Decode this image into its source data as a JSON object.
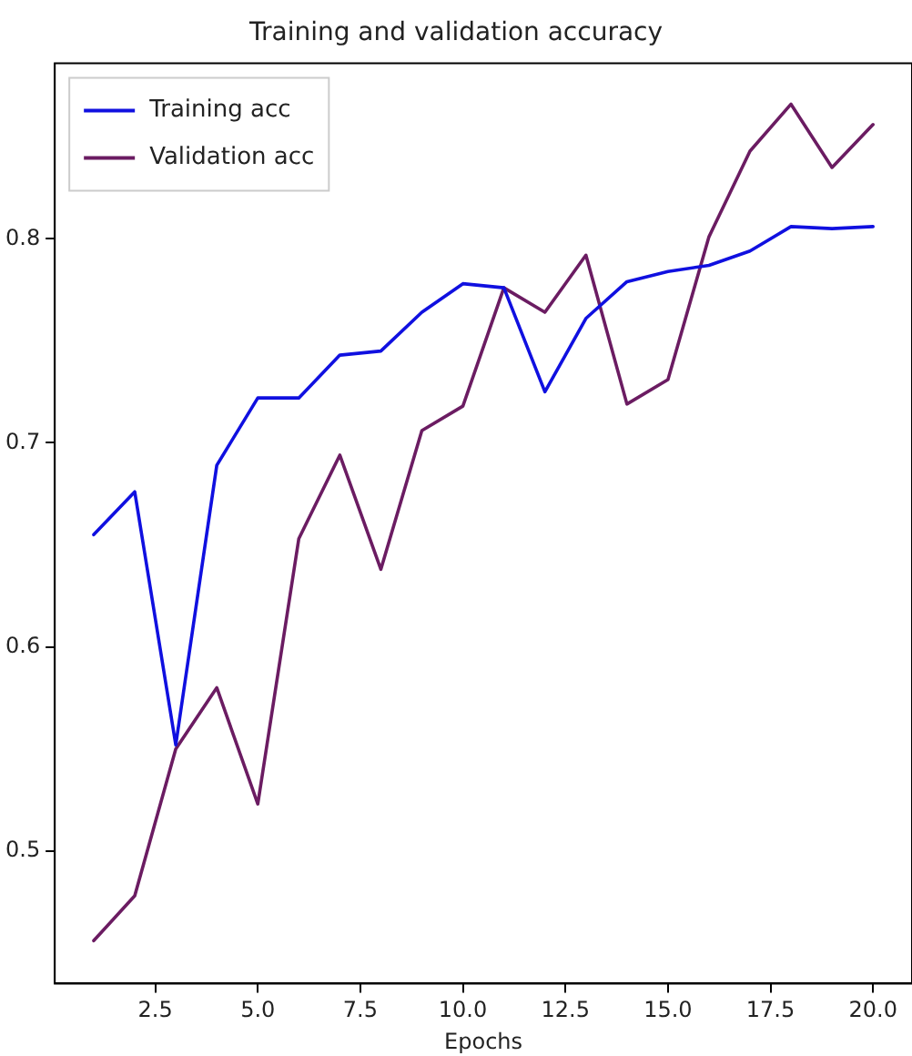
{
  "chart_data": {
    "type": "line",
    "title": "Training and validation accuracy",
    "xlabel": "Epochs",
    "x": [
      1,
      2,
      3,
      4,
      5,
      6,
      7,
      8,
      9,
      10,
      11,
      12,
      13,
      14,
      15,
      16,
      17,
      18,
      19,
      20
    ],
    "series": [
      {
        "name": "Training acc",
        "color": "#1010e0",
        "values": [
          0.655,
          0.676,
          0.552,
          0.689,
          0.722,
          0.722,
          0.743,
          0.745,
          0.764,
          0.778,
          0.776,
          0.725,
          0.761,
          0.779,
          0.784,
          0.787,
          0.794,
          0.806,
          0.805,
          0.806
        ]
      },
      {
        "name": "Validation acc",
        "color": "#6b1c62",
        "values": [
          0.456,
          0.478,
          0.55,
          0.58,
          0.523,
          0.653,
          0.694,
          0.638,
          0.706,
          0.718,
          0.776,
          0.764,
          0.792,
          0.719,
          0.731,
          0.801,
          0.843,
          0.866,
          0.835,
          0.856
        ]
      }
    ],
    "xlim": [
      0.05,
      20.95
    ],
    "xticks": [
      {
        "value": 2.5,
        "label": "2.5"
      },
      {
        "value": 5,
        "label": "5.0"
      },
      {
        "value": 7.5,
        "label": "7.5"
      },
      {
        "value": 10,
        "label": "10.0"
      },
      {
        "value": 12.5,
        "label": "12.5"
      },
      {
        "value": 15,
        "label": "15.0"
      },
      {
        "value": 17.5,
        "label": "17.5"
      },
      {
        "value": 20,
        "label": "20.0"
      }
    ],
    "ylim": [
      0.435,
      0.886
    ],
    "yticks": [
      0.5,
      0.6,
      0.7,
      0.8
    ],
    "grid": false,
    "legend": "top left",
    "marker": "none",
    "line_style": "solid"
  }
}
